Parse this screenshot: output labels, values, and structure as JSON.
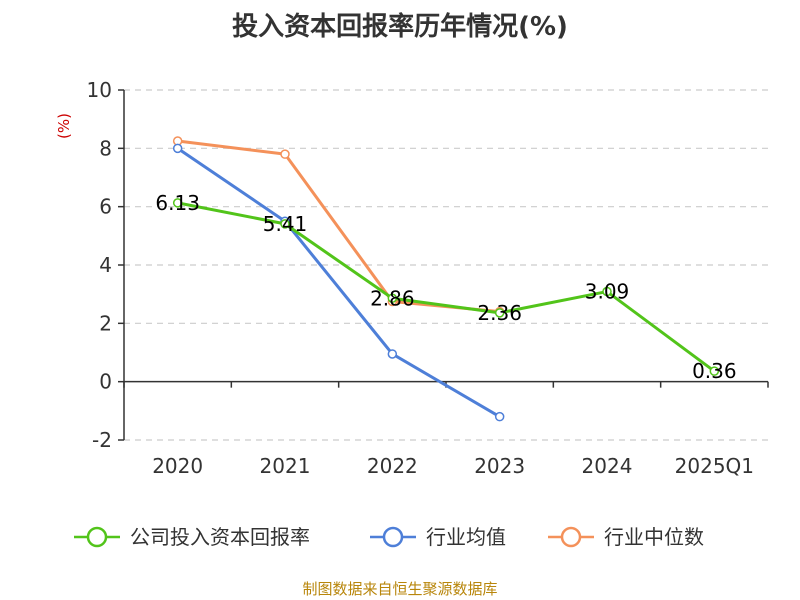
{
  "title": "投入资本回报率历年情况(%)",
  "source": "制图数据来自恒生聚源数据库",
  "colors": {
    "unit": "#cc0000",
    "source": "#b8860b",
    "axis": "#333333",
    "grid": "#cccccc"
  },
  "chart_data": {
    "type": "line",
    "title": "投入资本回报率历年情况(%)",
    "ylabel": "(%)",
    "xlabel": "",
    "categories": [
      "2020",
      "2021",
      "2022",
      "2023",
      "2024",
      "2025Q1"
    ],
    "ylim": [
      -2,
      10
    ],
    "yticks": [
      -2,
      0,
      2,
      4,
      6,
      8,
      10
    ],
    "grid": true,
    "legend_position": "bottom",
    "series": [
      {
        "name": "公司投入资本回报率",
        "color": "#52c41a",
        "values": [
          6.13,
          5.41,
          2.86,
          2.36,
          3.09,
          0.36
        ],
        "labels": [
          "6.13",
          "5.41",
          "2.86",
          "2.36",
          "3.09",
          "0.36"
        ]
      },
      {
        "name": "行业均值",
        "color": "#4e7fd8",
        "values": [
          8.0,
          5.5,
          0.95,
          -1.2,
          null,
          null
        ]
      },
      {
        "name": "行业中位数",
        "color": "#f4915a",
        "values": [
          8.25,
          7.8,
          2.75,
          2.4,
          null,
          null
        ]
      }
    ]
  }
}
